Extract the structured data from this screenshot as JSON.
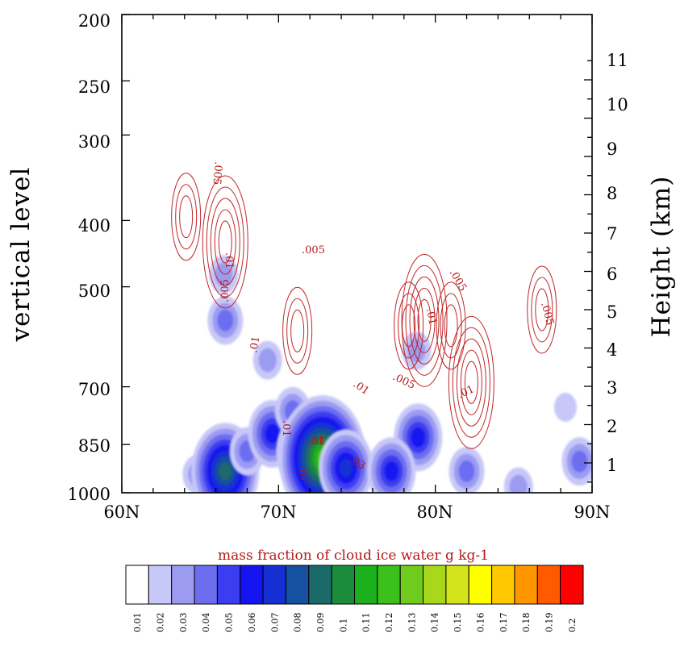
{
  "chart_data": {
    "type": "heatmap",
    "title": "",
    "xlabel": "",
    "ylabel": "vertical level",
    "y2label": "Height (km)",
    "x_ticks": [
      "60N",
      "70N",
      "80N",
      "90N"
    ],
    "x_values": [
      60,
      70,
      80,
      90
    ],
    "xlim": [
      60,
      90
    ],
    "y_ticks": [
      "200",
      "250",
      "300",
      "400",
      "500",
      "700",
      "850",
      "1000"
    ],
    "y_tick_values": [
      200,
      250,
      300,
      400,
      500,
      700,
      850,
      1000
    ],
    "ylim": [
      1000,
      200
    ],
    "y2_ticks": [
      "1",
      "2",
      "3",
      "4",
      "5",
      "6",
      "7",
      "8",
      "9",
      "10",
      "11"
    ],
    "colorbar": {
      "title": "mass fraction of cloud ice water g kg-1",
      "levels": [
        "0.01",
        "0.02",
        "0.03",
        "0.04",
        "0.05",
        "0.06",
        "0.07",
        "0.08",
        "0.09",
        "0.1",
        "0.11",
        "0.12",
        "0.13",
        "0.14",
        "0.15",
        "0.16",
        "0.17",
        "0.18",
        "0.19",
        "0.2"
      ],
      "colors": [
        "#ffffff",
        "#c8c8f8",
        "#9b9bf2",
        "#6d6df0",
        "#3c3cf0",
        "#1414f0",
        "#1430d2",
        "#1650a0",
        "#1a6a6a",
        "#1a8c3c",
        "#1cb01c",
        "#3cc01c",
        "#70cc1c",
        "#a8d81c",
        "#d4e41c",
        "#ffff00",
        "#ffc800",
        "#ff9600",
        "#ff5a00",
        "#ff0000"
      ]
    },
    "contour_labels": [
      ".005",
      ".01",
      ".005",
      ".01",
      ".01",
      ".005",
      ".01",
      ".005",
      ".005",
      ".01",
      ".01",
      ".01",
      ".03",
      ".07",
      ".01",
      ".005"
    ],
    "ice_blobs": [
      {
        "lat": 66.5,
        "p": 480,
        "level": 2
      },
      {
        "lat": 66.6,
        "p": 560,
        "level": 3
      },
      {
        "lat": 64.8,
        "p": 940,
        "level": 2
      },
      {
        "lat": 66.6,
        "p": 930,
        "level": 8
      },
      {
        "lat": 68.0,
        "p": 870,
        "level": 3
      },
      {
        "lat": 69.3,
        "p": 640,
        "level": 2
      },
      {
        "lat": 69.6,
        "p": 820,
        "level": 5
      },
      {
        "lat": 70.9,
        "p": 760,
        "level": 3
      },
      {
        "lat": 71.6,
        "p": 870,
        "level": 6
      },
      {
        "lat": 72.8,
        "p": 890,
        "level": 11
      },
      {
        "lat": 74.3,
        "p": 920,
        "level": 6
      },
      {
        "lat": 78.8,
        "p": 620,
        "level": 2
      },
      {
        "lat": 78.9,
        "p": 830,
        "level": 5
      },
      {
        "lat": 77.2,
        "p": 930,
        "level": 5
      },
      {
        "lat": 82.0,
        "p": 930,
        "level": 3
      },
      {
        "lat": 85.3,
        "p": 980,
        "level": 2
      },
      {
        "lat": 89.2,
        "p": 900,
        "level": 3
      },
      {
        "lat": 88.3,
        "p": 750,
        "level": 1
      }
    ],
    "contours": [
      {
        "lat": 64.1,
        "p": 395,
        "value": 0.005
      },
      {
        "lat": 66.6,
        "p": 430,
        "value": 0.01
      },
      {
        "lat": 71.2,
        "p": 580,
        "value": 0.005
      },
      {
        "lat": 78.3,
        "p": 570,
        "value": 0.005
      },
      {
        "lat": 79.3,
        "p": 560,
        "value": 0.01
      },
      {
        "lat": 81.0,
        "p": 570,
        "value": 0.005
      },
      {
        "lat": 82.3,
        "p": 690,
        "value": 0.01
      },
      {
        "lat": 86.8,
        "p": 540,
        "value": 0.005
      }
    ]
  }
}
